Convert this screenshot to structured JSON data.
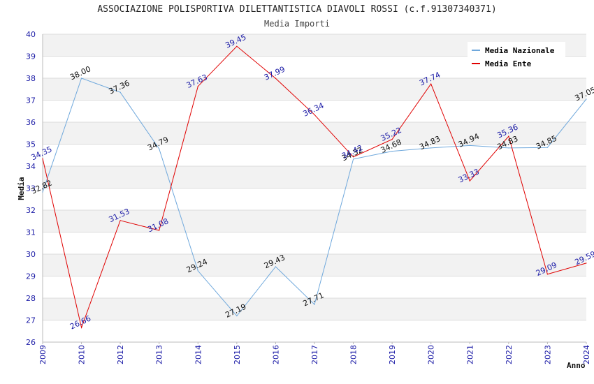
{
  "chart_title": "ASSOCIAZIONE POLISPORTIVA DILETTANTISTICA DIAVOLI ROSSI (c.f.91307340371)",
  "chart_subtitle": "Media Importi",
  "chart_data": {
    "type": "line",
    "title": "ASSOCIAZIONE POLISPORTIVA DILETTANTISTICA DIAVOLI ROSSI (c.f.91307340371)",
    "subtitle": "Media Importi",
    "xlabel": "Anno",
    "ylabel": "Media",
    "ylim": [
      26,
      40
    ],
    "yticks": [
      26,
      27,
      28,
      29,
      30,
      31,
      32,
      33,
      34,
      35,
      36,
      37,
      38,
      39,
      40
    ],
    "categories": [
      "2009",
      "2010",
      "2012",
      "2013",
      "2014",
      "2015",
      "2016",
      "2017",
      "2018",
      "2019",
      "2020",
      "2021",
      "2022",
      "2023",
      "2024"
    ],
    "grid": true,
    "legend_position": "top-right",
    "series": [
      {
        "name": "Media Nazionale",
        "color": "#6fa8dc",
        "values": [
          32.82,
          38.0,
          37.36,
          34.79,
          29.24,
          27.19,
          29.43,
          27.71,
          34.32,
          34.68,
          34.83,
          34.94,
          34.83,
          34.85,
          37.05
        ],
        "labels": [
          "32.82",
          "38.00",
          "37.36",
          "34.79",
          "29.24",
          "27.19",
          "29.43",
          "27.71",
          "34.32",
          "34.68",
          "34.83",
          "34.94",
          "34.83",
          "34.85",
          "37.05"
        ]
      },
      {
        "name": "Media Ente",
        "color": "#e00000",
        "values": [
          34.35,
          26.66,
          31.53,
          31.08,
          37.63,
          39.45,
          37.99,
          36.34,
          34.42,
          35.22,
          37.74,
          33.33,
          35.36,
          29.09,
          29.59
        ],
        "labels": [
          "34.35",
          "26.66",
          "31.53",
          "31.08",
          "37.63",
          "39.45",
          "37.99",
          "36.34",
          "34.42",
          "35.22",
          "37.74",
          "33.33",
          "35.36",
          "29.09",
          "29.59"
        ]
      }
    ]
  }
}
